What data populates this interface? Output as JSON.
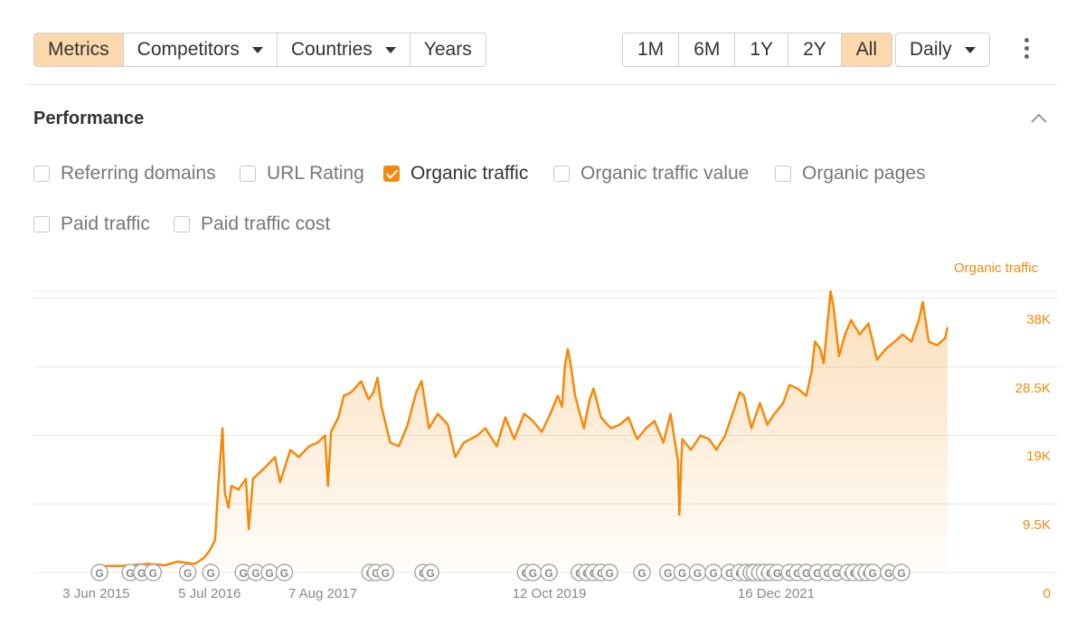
{
  "toolbar": {
    "tabs": [
      {
        "label": "Metrics",
        "active": true
      },
      {
        "label": "Competitors",
        "dropdown": true
      },
      {
        "label": "Countries",
        "dropdown": true
      },
      {
        "label": "Years"
      }
    ],
    "ranges": [
      "1M",
      "6M",
      "1Y",
      "2Y",
      "All"
    ],
    "active_range": "All",
    "interval": "Daily",
    "more_icon": "kebab-menu-icon"
  },
  "performance": {
    "title": "Performance",
    "collapse_icon": "chevron-up-icon",
    "metrics": [
      {
        "label": "Referring domains",
        "checked": false
      },
      {
        "label": "URL Rating",
        "checked": false
      },
      {
        "label": "Organic traffic",
        "checked": true
      },
      {
        "label": "Organic traffic value",
        "checked": false
      },
      {
        "label": "Organic pages",
        "checked": false
      },
      {
        "label": "Paid traffic",
        "checked": false
      },
      {
        "label": "Paid traffic cost",
        "checked": false
      }
    ]
  },
  "colors": {
    "accent": "#f48a0a",
    "active_bg": "#fcd8ad"
  },
  "chart_data": {
    "type": "area",
    "series": [
      {
        "name": "Organic traffic",
        "points": [
          [
            "2015-06-03",
            900
          ],
          [
            "2015-09-01",
            900
          ],
          [
            "2015-12-01",
            1200
          ],
          [
            "2016-02-01",
            1000
          ],
          [
            "2016-03-15",
            1500
          ],
          [
            "2016-05-15",
            1200
          ],
          [
            "2016-06-15",
            2000
          ],
          [
            "2016-07-05",
            3000
          ],
          [
            "2016-07-25",
            4500
          ],
          [
            "2016-08-05",
            12000
          ],
          [
            "2016-08-15",
            17500
          ],
          [
            "2016-08-20",
            20000
          ],
          [
            "2016-08-28",
            11000
          ],
          [
            "2016-09-10",
            9000
          ],
          [
            "2016-09-20",
            12000
          ],
          [
            "2016-10-15",
            11500
          ],
          [
            "2016-11-10",
            13000
          ],
          [
            "2016-11-20",
            6000
          ],
          [
            "2016-12-05",
            13000
          ],
          [
            "2017-01-15",
            14500
          ],
          [
            "2017-02-20",
            16000
          ],
          [
            "2017-03-10",
            12500
          ],
          [
            "2017-04-15",
            17000
          ],
          [
            "2017-05-15",
            16000
          ],
          [
            "2017-06-20",
            17500
          ],
          [
            "2017-07-20",
            18000
          ],
          [
            "2017-08-15",
            19000
          ],
          [
            "2017-08-25",
            12000
          ],
          [
            "2017-09-05",
            19500
          ],
          [
            "2017-10-01",
            21500
          ],
          [
            "2017-10-20",
            24500
          ],
          [
            "2017-11-15",
            25000
          ],
          [
            "2017-12-20",
            26500
          ],
          [
            "2018-01-15",
            24000
          ],
          [
            "2018-02-01",
            25000
          ],
          [
            "2018-02-15",
            27000
          ],
          [
            "2018-03-01",
            23000
          ],
          [
            "2018-04-01",
            18000
          ],
          [
            "2018-05-01",
            17500
          ],
          [
            "2018-06-01",
            20500
          ],
          [
            "2018-07-01",
            25000
          ],
          [
            "2018-07-20",
            26500
          ],
          [
            "2018-08-15",
            20000
          ],
          [
            "2018-09-15",
            22000
          ],
          [
            "2018-10-20",
            20500
          ],
          [
            "2018-11-15",
            16000
          ],
          [
            "2018-12-15",
            18000
          ],
          [
            "2019-02-01",
            19000
          ],
          [
            "2019-03-01",
            20000
          ],
          [
            "2019-04-10",
            17500
          ],
          [
            "2019-05-10",
            21500
          ],
          [
            "2019-06-10",
            18500
          ],
          [
            "2019-07-15",
            22000
          ],
          [
            "2019-08-15",
            21000
          ],
          [
            "2019-09-15",
            19500
          ],
          [
            "2019-10-15",
            22000
          ],
          [
            "2019-11-10",
            24500
          ],
          [
            "2019-11-25",
            23000
          ],
          [
            "2019-12-05",
            28500
          ],
          [
            "2019-12-15",
            31000
          ],
          [
            "2019-12-25",
            29000
          ],
          [
            "2020-01-10",
            24500
          ],
          [
            "2020-02-10",
            20000
          ],
          [
            "2020-03-01",
            24000
          ],
          [
            "2020-03-15",
            25500
          ],
          [
            "2020-04-10",
            21500
          ],
          [
            "2020-05-15",
            20000
          ],
          [
            "2020-06-15",
            20500
          ],
          [
            "2020-07-15",
            21500
          ],
          [
            "2020-08-15",
            18500
          ],
          [
            "2020-09-15",
            20000
          ],
          [
            "2020-10-15",
            21000
          ],
          [
            "2020-11-15",
            18000
          ],
          [
            "2020-12-10",
            22000
          ],
          [
            "2021-01-05",
            15500
          ],
          [
            "2021-01-10",
            8000
          ],
          [
            "2021-01-20",
            18500
          ],
          [
            "2021-02-20",
            17000
          ],
          [
            "2021-03-25",
            19000
          ],
          [
            "2021-04-25",
            18500
          ],
          [
            "2021-05-20",
            17000
          ],
          [
            "2021-06-20",
            19000
          ],
          [
            "2021-07-20",
            22500
          ],
          [
            "2021-08-10",
            25000
          ],
          [
            "2021-08-25",
            24500
          ],
          [
            "2021-09-20",
            20000
          ],
          [
            "2021-10-20",
            23500
          ],
          [
            "2021-11-15",
            20500
          ],
          [
            "2021-12-10",
            22000
          ],
          [
            "2022-01-10",
            23500
          ],
          [
            "2022-02-01",
            26000
          ],
          [
            "2022-03-01",
            25500
          ],
          [
            "2022-04-01",
            24500
          ],
          [
            "2022-04-20",
            28000
          ],
          [
            "2022-05-01",
            32000
          ],
          [
            "2022-05-20",
            31000
          ],
          [
            "2022-06-01",
            29000
          ],
          [
            "2022-06-25",
            39000
          ],
          [
            "2022-07-05",
            37000
          ],
          [
            "2022-07-25",
            30000
          ],
          [
            "2022-08-15",
            33000
          ],
          [
            "2022-09-05",
            35000
          ],
          [
            "2022-10-05",
            33000
          ],
          [
            "2022-11-05",
            34500
          ],
          [
            "2022-12-05",
            29500
          ],
          [
            "2023-01-05",
            31000
          ],
          [
            "2023-02-05",
            32000
          ],
          [
            "2023-03-05",
            33000
          ],
          [
            "2023-04-05",
            32000
          ],
          [
            "2023-05-01",
            35000
          ],
          [
            "2023-05-15",
            37500
          ],
          [
            "2023-06-05",
            32000
          ],
          [
            "2023-07-05",
            31500
          ],
          [
            "2023-08-01",
            32500
          ],
          [
            "2023-08-10",
            34000
          ]
        ]
      }
    ],
    "ylim": [
      0,
      41000
    ],
    "yticks": [
      "0",
      "9.5K",
      "19K",
      "28.5K",
      "38K"
    ],
    "ytick_values": [
      0,
      9500,
      19000,
      28500,
      38000
    ],
    "xlim": [
      "2014-10-26",
      "2024-01-22"
    ],
    "xticks": [
      {
        "label": "3 Jun 2015",
        "date": "2015-06-03"
      },
      {
        "label": "5 Jul 2016",
        "date": "2016-07-05"
      },
      {
        "label": "7 Aug 2017",
        "date": "2017-08-07"
      },
      {
        "label": "12 Oct 2019",
        "date": "2019-10-12"
      },
      {
        "label": "16 Dec 2021",
        "date": "2021-12-16"
      }
    ],
    "annotation_label": "G",
    "annotation_icon": "google-update-icon",
    "annotations": [
      "2015-06-15",
      "2015-10-01",
      "2015-11-10",
      "2015-12-20",
      "2016-04-20",
      "2016-07-10",
      "2016-11-01",
      "2016-12-15",
      "2017-02-01",
      "2017-03-25",
      "2018-01-20",
      "2018-02-10",
      "2018-03-15",
      "2018-07-25",
      "2018-08-20",
      "2019-07-20",
      "2019-08-15",
      "2019-10-10",
      "2020-01-25",
      "2020-02-20",
      "2020-03-15",
      "2020-04-10",
      "2020-05-10",
      "2020-09-01",
      "2020-12-01",
      "2021-01-20",
      "2021-03-15",
      "2021-05-10",
      "2021-07-05",
      "2021-08-10",
      "2021-09-01",
      "2021-09-20",
      "2021-10-01",
      "2021-10-20",
      "2021-11-05",
      "2021-11-25",
      "2021-12-20",
      "2022-02-01",
      "2022-03-01",
      "2022-04-01",
      "2022-05-10",
      "2022-06-15",
      "2022-07-15",
      "2022-08-25",
      "2022-09-15",
      "2022-10-10",
      "2022-10-30",
      "2022-11-20",
      "2023-01-15",
      "2023-03-01"
    ]
  }
}
